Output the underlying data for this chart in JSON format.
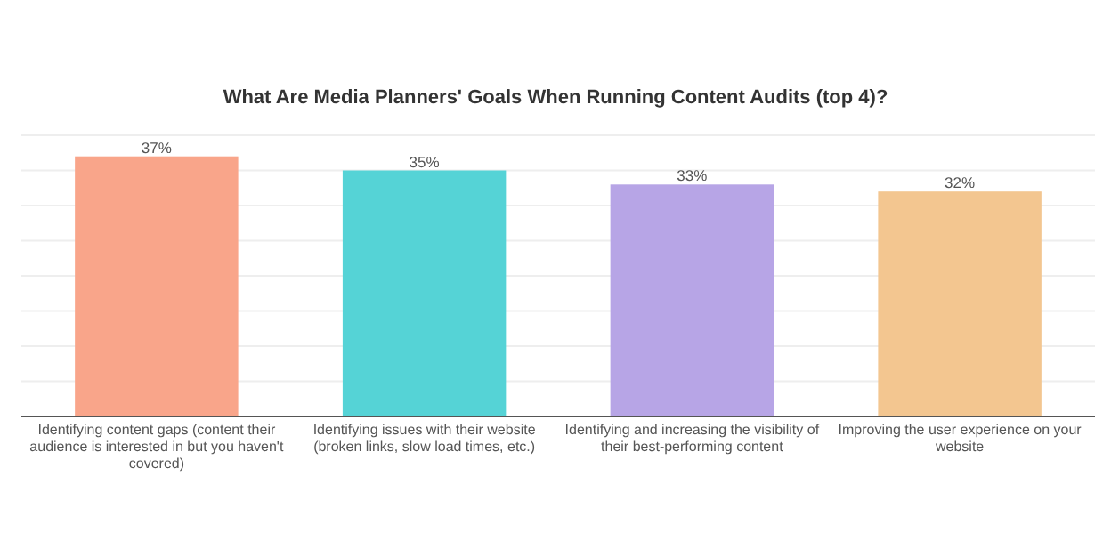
{
  "chart_data": {
    "type": "bar",
    "title": "What Are Media Planners' Goals When Running Content Audits (top 4)?",
    "categories": [
      "Identifying content gaps (content their audience is interested in but you haven't covered)",
      "Identifying issues with their website (broken links, slow load times, etc.)",
      "Identifying and increasing the visibility of their best-performing content",
      "Improving the user experience on your website"
    ],
    "values": [
      37,
      35,
      33,
      32
    ],
    "colors": [
      "#f9a58a",
      "#55d3d6",
      "#b7a5e6",
      "#f3c690"
    ],
    "value_labels": [
      "37%",
      "35%",
      "33%",
      "32%"
    ],
    "ylim": [
      0,
      40
    ],
    "yticks": [
      {
        "value": 0,
        "label": null
      },
      {
        "value": 5,
        "label": null
      },
      {
        "value": 10,
        "label": null
      },
      {
        "value": 15,
        "label": null
      },
      {
        "value": 20,
        "label": null
      },
      {
        "value": 25,
        "label": null
      },
      {
        "value": 30,
        "label": null
      },
      {
        "value": 35,
        "label": null
      },
      {
        "value": 40,
        "label": null
      }
    ],
    "grid": "y",
    "tick_labels": "x"
  }
}
